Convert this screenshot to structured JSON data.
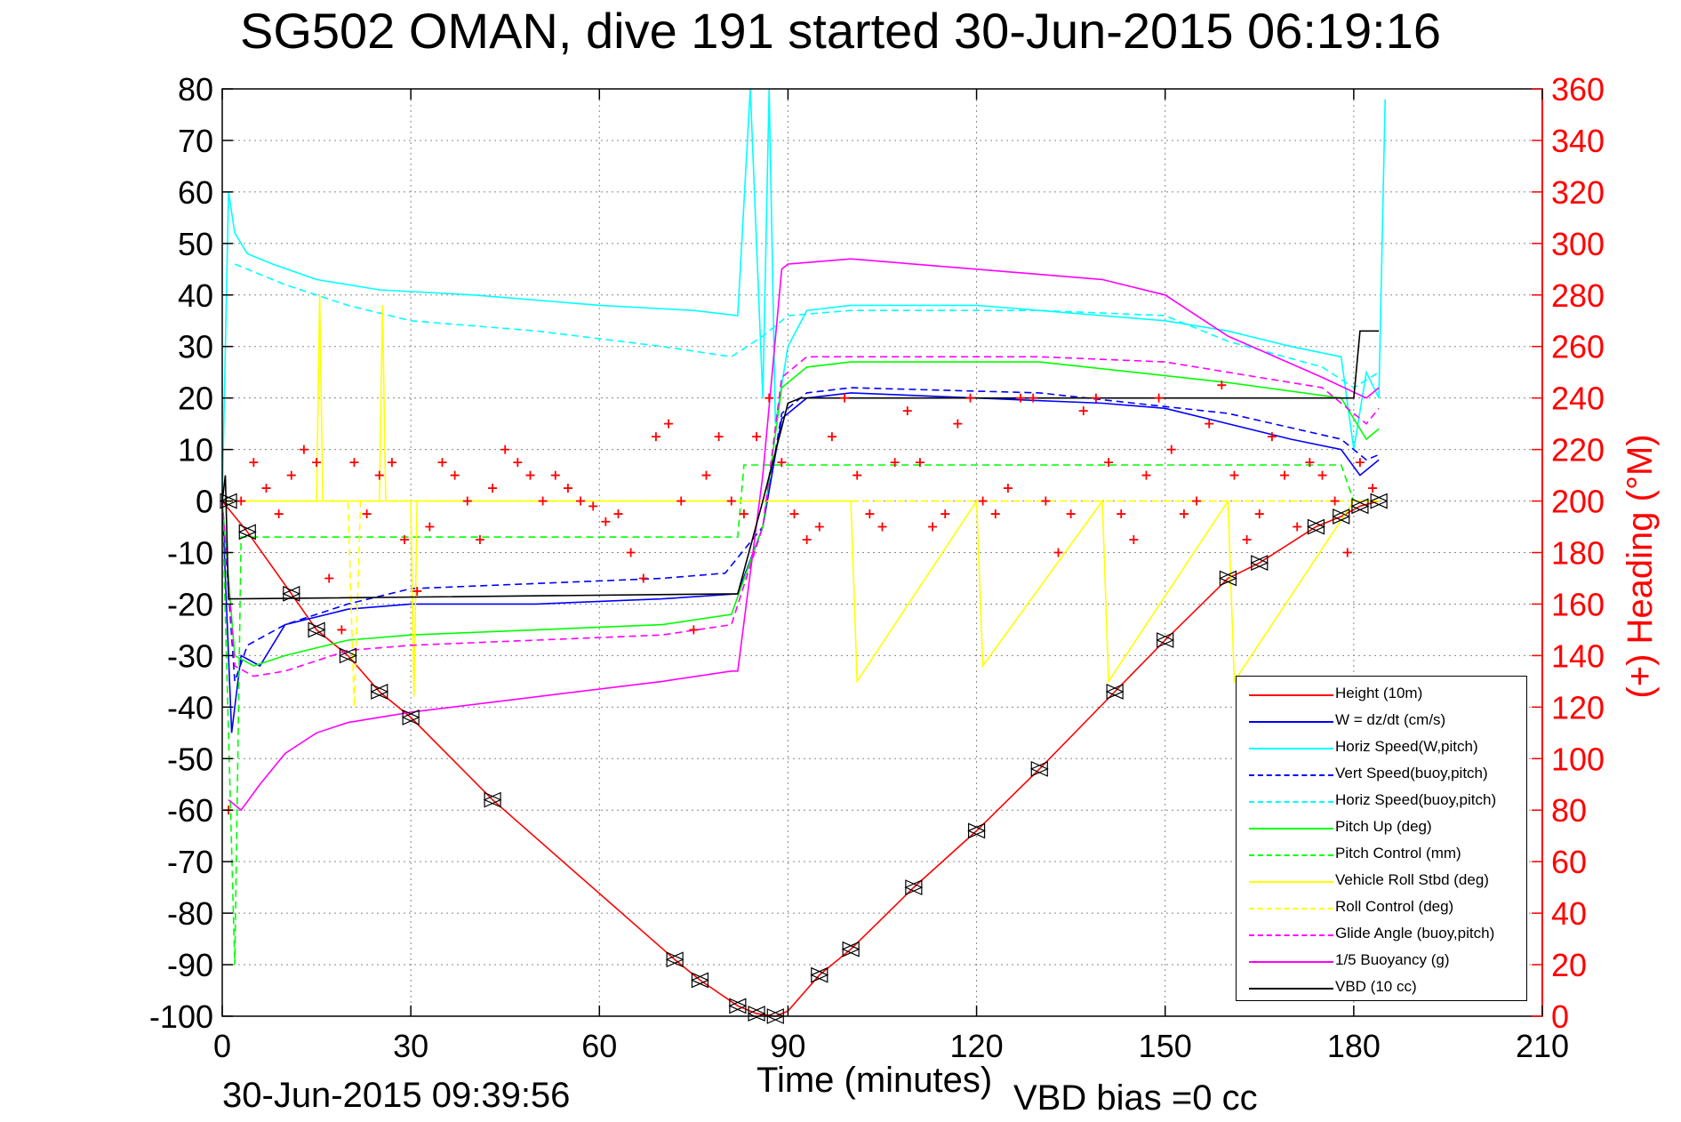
{
  "title": "SG502 OMAN, dive 191 started 30-Jun-2015 06:19:16",
  "footer": {
    "timestamp": "30-Jun-2015 09:39:56",
    "vbd_bias": "VBD bias =0 cc"
  },
  "chart_data": {
    "type": "line",
    "title": "SG502 OMAN, dive 191 started 30-Jun-2015 06:19:16",
    "xlabel": "Time (minutes)",
    "ylabel": "",
    "y2label": "(+) Heading (°M)",
    "xlim": [
      0,
      210
    ],
    "ylim": [
      -100,
      80
    ],
    "y2lim": [
      0,
      360
    ],
    "xticks": [
      0,
      30,
      60,
      90,
      120,
      150,
      180,
      210
    ],
    "yticks": [
      -100,
      -90,
      -80,
      -70,
      -60,
      -50,
      -40,
      -30,
      -20,
      -10,
      0,
      10,
      20,
      30,
      40,
      50,
      60,
      70,
      80
    ],
    "y2ticks": [
      0,
      20,
      40,
      60,
      80,
      100,
      120,
      140,
      160,
      180,
      200,
      220,
      240,
      260,
      280,
      300,
      320,
      340,
      360
    ],
    "grid": true,
    "legend_position": "bottom-right",
    "colors": {
      "axis_right": "#ff0000",
      "height": "#ff0000",
      "w": "#0000ff",
      "horiz": "#00ffff",
      "pitch": "#00ff00",
      "roll": "#ffff00",
      "glide": "#ff00ff",
      "buoy": "#ff00ff",
      "vbd": "#000000"
    },
    "series": [
      {
        "name": "Height (10m)",
        "color": "#ff0000",
        "dash": "solid",
        "x": [
          0,
          4,
          11,
          15,
          20,
          25,
          30,
          43,
          72,
          76,
          82,
          85,
          88,
          90,
          95,
          100,
          110,
          120,
          130,
          142,
          150,
          160,
          165,
          174,
          178,
          181,
          184
        ],
        "y": [
          0,
          -6,
          -18,
          -25,
          -30,
          -37,
          -42,
          -58,
          -89,
          -93,
          -98,
          -99.5,
          -100,
          -99,
          -92,
          -87,
          -75,
          -64,
          -52,
          -37,
          -27,
          -15,
          -12,
          -5,
          -3,
          -1,
          0
        ]
      },
      {
        "name": "W = dz/dt (cm/s)",
        "color": "#0000ff",
        "dash": "solid",
        "x": [
          0,
          1.5,
          3,
          6,
          10,
          20,
          30,
          50,
          70,
          82,
          86,
          89,
          93,
          100,
          120,
          140,
          150,
          160,
          170,
          178,
          181,
          184
        ],
        "y": [
          0,
          -45,
          -30,
          -32,
          -24,
          -21,
          -20,
          -20,
          -19,
          -18,
          -5,
          16,
          20,
          21,
          20,
          19,
          18,
          15,
          12,
          10,
          5,
          8
        ]
      },
      {
        "name": "Horiz Speed(W,pitch)",
        "color": "#00ffff",
        "dash": "solid",
        "x": [
          0,
          1,
          2,
          4,
          8,
          15,
          25,
          40,
          60,
          75,
          82,
          84,
          86,
          87,
          88,
          90,
          93,
          100,
          120,
          140,
          150,
          160,
          170,
          178,
          180,
          182,
          184,
          185
        ],
        "y": [
          0,
          60,
          52,
          48,
          46,
          43,
          41,
          40,
          38,
          37,
          36,
          80,
          20,
          80,
          15,
          30,
          37,
          38,
          38,
          36,
          35,
          33,
          30,
          28,
          10,
          25,
          20,
          78
        ]
      },
      {
        "name": "Vert Speed(buoy,pitch)",
        "color": "#0000ff",
        "dash": "dashed",
        "x": [
          0,
          2,
          4,
          10,
          20,
          30,
          50,
          70,
          80,
          86,
          89,
          93,
          100,
          130,
          160,
          178,
          182,
          184
        ],
        "y": [
          0,
          -35,
          -28,
          -24,
          -20,
          -17,
          -16,
          -15,
          -14,
          -5,
          17,
          21,
          22,
          21,
          17,
          12,
          8,
          9
        ]
      },
      {
        "name": "Horiz Speed(buoy,pitch)",
        "color": "#00ffff",
        "dash": "dashed",
        "x": [
          2,
          10,
          20,
          30,
          50,
          70,
          81,
          86,
          90,
          100,
          130,
          150,
          160,
          175,
          180,
          184
        ],
        "y": [
          46,
          42,
          38,
          35,
          33,
          30,
          28,
          32,
          36,
          37,
          37,
          36,
          31,
          26,
          22,
          25
        ]
      },
      {
        "name": "Pitch Up (deg)",
        "color": "#00ff00",
        "dash": "solid",
        "x": [
          0,
          2,
          5,
          10,
          20,
          30,
          50,
          70,
          81,
          86,
          89,
          93,
          100,
          130,
          160,
          178,
          182,
          184
        ],
        "y": [
          0,
          -30,
          -32,
          -30,
          -27,
          -26,
          -25,
          -24,
          -22,
          -5,
          22,
          26,
          27,
          27,
          23,
          20,
          12,
          14
        ]
      },
      {
        "name": "Pitch Control (mm)",
        "color": "#00ff00",
        "dash": "dashed",
        "x": [
          0,
          2,
          3,
          4,
          82,
          83,
          90,
          178,
          180,
          184
        ],
        "y": [
          0,
          -90,
          -7,
          -7,
          -7,
          7,
          7,
          7,
          0,
          0
        ]
      },
      {
        "name": "Vehicle Roll Stbd (deg)",
        "color": "#ffff00",
        "dash": "solid",
        "x": [
          0,
          15,
          15.5,
          16,
          25,
          25.5,
          26,
          30,
          30.5,
          31,
          82,
          83,
          100,
          101,
          120,
          121,
          140,
          141,
          160,
          161,
          180,
          184
        ],
        "y": [
          0,
          0,
          40,
          0,
          0,
          38,
          0,
          0,
          -38,
          0,
          0,
          0,
          0,
          -35,
          0,
          -32,
          0,
          -35,
          0,
          -35,
          0,
          0
        ]
      },
      {
        "name": "Roll Control (deg)",
        "color": "#ffff00",
        "dash": "dashed",
        "x": [
          0,
          20,
          21,
          22,
          60,
          82,
          83,
          120,
          180,
          184
        ],
        "y": [
          0,
          0,
          -40,
          0,
          0,
          0,
          0,
          0,
          0,
          0
        ]
      },
      {
        "name": "Glide Angle (buoy,pitch)",
        "color": "#ff00ff",
        "dash": "dashed",
        "x": [
          0,
          2,
          5,
          10,
          20,
          30,
          50,
          70,
          81,
          86,
          89,
          93,
          100,
          130,
          150,
          160,
          175,
          182,
          184
        ],
        "y": [
          0,
          -32,
          -34,
          -33,
          -29,
          -28,
          -27,
          -26,
          -24,
          -5,
          24,
          28,
          28,
          28,
          27,
          25,
          22,
          15,
          18
        ]
      },
      {
        "name": "1/5 Buoyancy (g)",
        "color": "#ff00ff",
        "dash": "solid",
        "x": [
          1,
          3,
          6,
          10,
          15,
          20,
          30,
          50,
          70,
          81,
          82,
          86,
          89,
          90,
          100,
          120,
          140,
          150,
          160,
          175,
          182,
          184
        ],
        "y": [
          -58,
          -60,
          -55,
          -49,
          -45,
          -43,
          -41,
          -38,
          -35,
          -33,
          -33,
          5,
          45,
          46,
          47,
          45,
          43,
          40,
          32,
          24,
          20,
          22
        ]
      },
      {
        "name": "VBD (10 cc)",
        "color": "#000000",
        "dash": "solid",
        "x": [
          0,
          0.5,
          1,
          2,
          82,
          86,
          90,
          92,
          178,
          179,
          180,
          181,
          184
        ],
        "y": [
          0,
          5,
          -19,
          -19,
          -18,
          0,
          19,
          20,
          20,
          20,
          20,
          33,
          33
        ]
      }
    ],
    "heading": {
      "name": "Heading",
      "axis": "right",
      "color": "#ff0000",
      "marker": "+",
      "x": [
        1,
        3,
        5,
        7,
        9,
        11,
        13,
        15,
        17,
        19,
        21,
        23,
        25,
        27,
        29,
        31,
        33,
        35,
        37,
        39,
        41,
        43,
        45,
        47,
        49,
        51,
        53,
        55,
        57,
        59,
        61,
        63,
        65,
        67,
        69,
        71,
        73,
        75,
        77,
        79,
        81,
        83,
        85,
        87,
        89,
        91,
        93,
        95,
        97,
        99,
        101,
        103,
        105,
        107,
        109,
        111,
        113,
        115,
        117,
        119,
        121,
        123,
        125,
        127,
        129,
        131,
        133,
        135,
        137,
        139,
        141,
        143,
        145,
        147,
        149,
        151,
        153,
        155,
        157,
        159,
        161,
        163,
        165,
        167,
        169,
        171,
        173,
        175,
        177,
        179,
        181,
        183
      ],
      "y": [
        80,
        200,
        215,
        205,
        195,
        210,
        220,
        215,
        170,
        150,
        215,
        195,
        210,
        215,
        185,
        165,
        190,
        215,
        210,
        200,
        185,
        205,
        220,
        215,
        210,
        200,
        210,
        205,
        200,
        198,
        192,
        195,
        180,
        170,
        225,
        230,
        200,
        150,
        210,
        225,
        200,
        195,
        225,
        240,
        215,
        195,
        185,
        190,
        225,
        240,
        210,
        195,
        190,
        215,
        235,
        215,
        190,
        195,
        230,
        240,
        200,
        195,
        205,
        240,
        240,
        200,
        180,
        195,
        235,
        240,
        215,
        195,
        185,
        210,
        240,
        220,
        195,
        200,
        230,
        245,
        210,
        185,
        195,
        225,
        210,
        190,
        215,
        210,
        200,
        180,
        215,
        205
      ]
    },
    "vbd_markers": {
      "x": [
        1,
        4,
        11,
        15,
        20,
        25,
        30,
        43,
        72,
        76,
        82,
        85,
        88,
        95,
        100,
        110,
        120,
        130,
        142,
        150,
        160,
        165,
        174,
        178,
        181,
        184
      ],
      "y": [
        0,
        -6,
        -18,
        -25,
        -30,
        -37,
        -42,
        -58,
        -89,
        -93,
        -98,
        -99.5,
        -100,
        -92,
        -87,
        -75,
        -64,
        -52,
        -37,
        -27,
        -15,
        -12,
        -5,
        -3,
        -1,
        0
      ]
    },
    "legend": [
      "Height (10m)",
      "W = dz/dt (cm/s)",
      "Horiz Speed(W,pitch)",
      "Vert Speed(buoy,pitch)",
      "Horiz Speed(buoy,pitch)",
      "Pitch Up (deg)",
      "Pitch Control (mm)",
      "Vehicle Roll Stbd (deg)",
      "Roll Control (deg)",
      "Glide Angle (buoy,pitch)",
      "1/5 Buoyancy (g)",
      "VBD (10 cc)"
    ]
  }
}
